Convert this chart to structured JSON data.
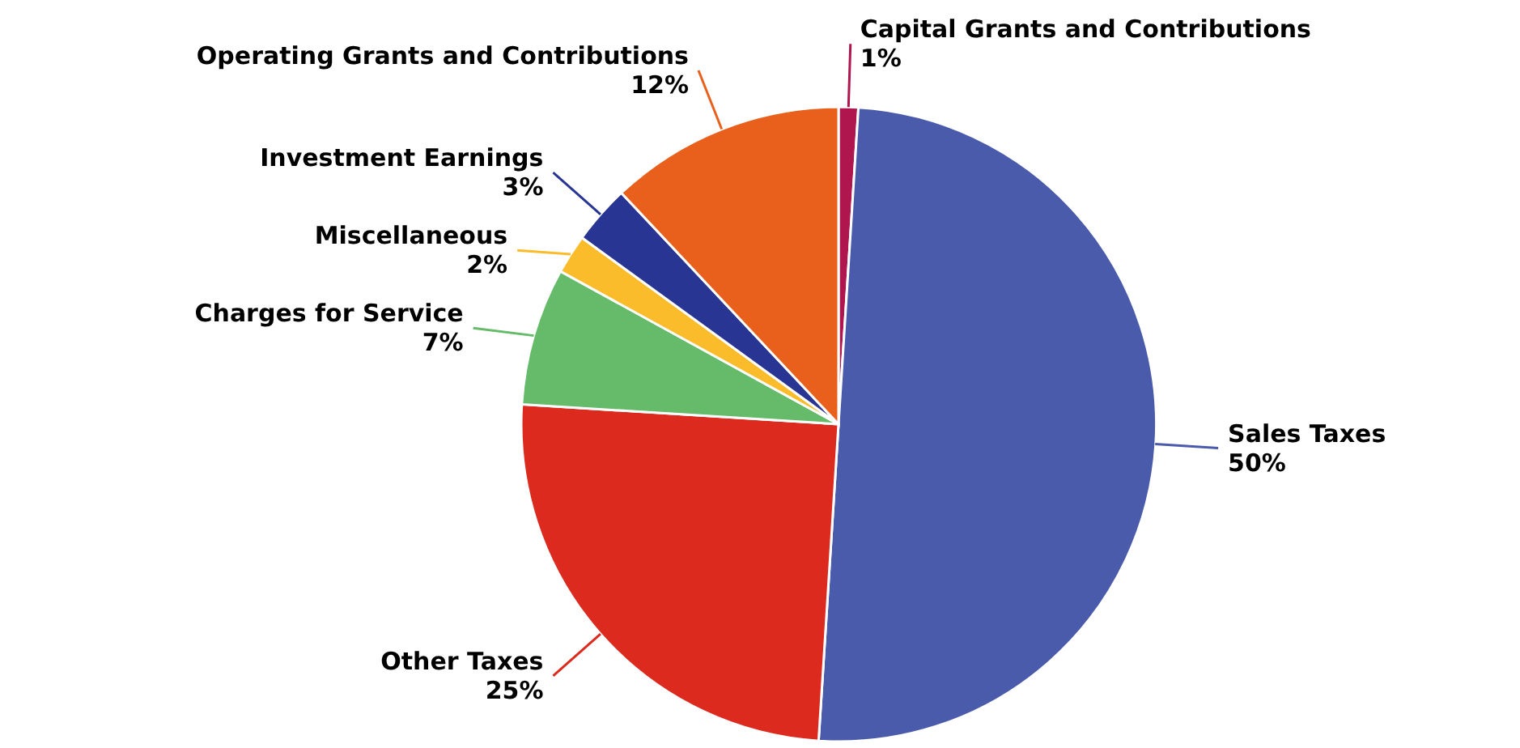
{
  "chart_data": {
    "type": "pie",
    "categories": [
      "Capital Grants and Contributions",
      "Sales Taxes",
      "Other Taxes",
      "Charges for Service",
      "Miscellaneous",
      "Investment Earnings",
      "Operating Grants and Contributions"
    ],
    "values": [
      1,
      50,
      25,
      7,
      2,
      3,
      12
    ],
    "value_labels": [
      "1%",
      "50%",
      "25%",
      "7%",
      "2%",
      "3%",
      "12%"
    ],
    "colors": [
      "#b0164e",
      "#4b5bab",
      "#dc2a1e",
      "#66bb6a",
      "#fbbc2c",
      "#283593",
      "#e8601c"
    ]
  }
}
